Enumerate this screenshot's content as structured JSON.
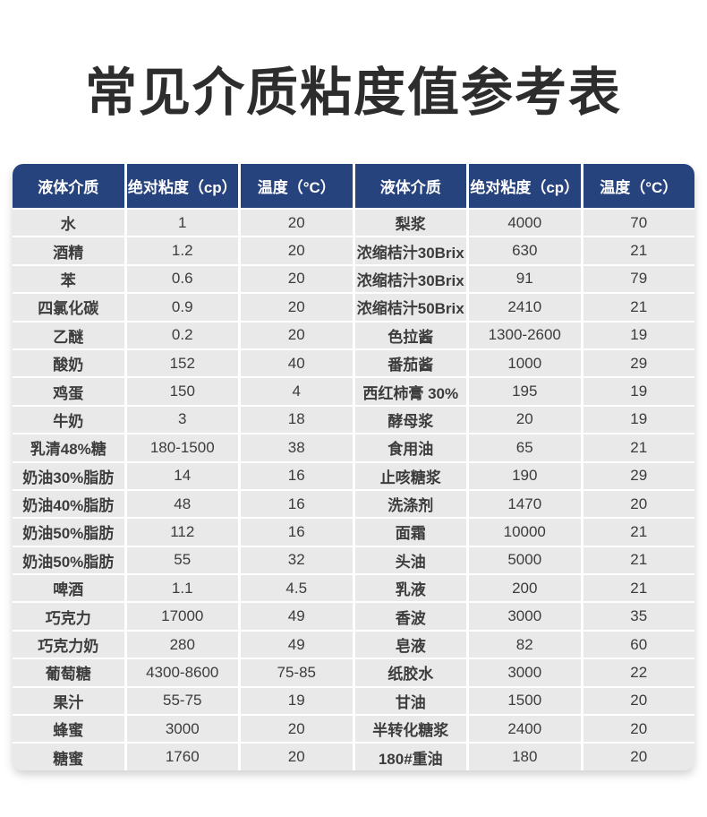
{
  "page": {
    "title": "常见介质粘度值参考表"
  },
  "colors": {
    "title_color": "#2d2d2d",
    "header_bg": "#27437e",
    "header_text": "#ffffff",
    "row_bg": "#e9e9e9",
    "cell_text": "#3c3c3c",
    "separator": "#ffffff"
  },
  "table": {
    "headers": [
      "液体介质",
      "绝对粘度（cp）",
      "温度（°C）",
      "液体介质",
      "绝对粘度（cp）",
      "温度（°C）"
    ],
    "rows": [
      [
        "水",
        "1",
        "20",
        "梨浆",
        "4000",
        "70"
      ],
      [
        "酒精",
        "1.2",
        "20",
        "浓缩桔汁30Brix",
        "630",
        "21"
      ],
      [
        "苯",
        "0.6",
        "20",
        "浓缩桔汁30Brix",
        "91",
        "79"
      ],
      [
        "四氯化碳",
        "0.9",
        "20",
        "浓缩桔汁50Brix",
        "2410",
        "21"
      ],
      [
        "乙醚",
        "0.2",
        "20",
        "色拉酱",
        "1300-2600",
        "19"
      ],
      [
        "酸奶",
        "152",
        "40",
        "番茄酱",
        "1000",
        "29"
      ],
      [
        "鸡蛋",
        "150",
        "4",
        "西红柿膏 30%",
        "195",
        "19"
      ],
      [
        "牛奶",
        "3",
        "18",
        "酵母浆",
        "20",
        "19"
      ],
      [
        "乳清48%糖",
        "180-1500",
        "38",
        "食用油",
        "65",
        "21"
      ],
      [
        "奶油30%脂肪",
        "14",
        "16",
        "止咳糖浆",
        "190",
        "29"
      ],
      [
        "奶油40%脂肪",
        "48",
        "16",
        "洗涤剂",
        "1470",
        "20"
      ],
      [
        "奶油50%脂肪",
        "112",
        "16",
        "面霜",
        "10000",
        "21"
      ],
      [
        "奶油50%脂肪",
        "55",
        "32",
        "头油",
        "5000",
        "21"
      ],
      [
        "啤酒",
        "1.1",
        "4.5",
        "乳液",
        "200",
        "21"
      ],
      [
        "巧克力",
        "17000",
        "49",
        "香波",
        "3000",
        "35"
      ],
      [
        "巧克力奶",
        "280",
        "49",
        "皂液",
        "82",
        "60"
      ],
      [
        "葡萄糖",
        "4300-8600",
        "75-85",
        "纸胶水",
        "3000",
        "22"
      ],
      [
        "果汁",
        "55-75",
        "19",
        "甘油",
        "1500",
        "20"
      ],
      [
        "蜂蜜",
        "3000",
        "20",
        "半转化糖浆",
        "2400",
        "20"
      ],
      [
        "糖蜜",
        "1760",
        "20",
        "180#重油",
        "180",
        "20"
      ]
    ]
  },
  "chart_data": {
    "type": "table",
    "title": "常见介质粘度值参考表",
    "columns": [
      "液体介质",
      "绝对粘度（cp）",
      "温度（°C）"
    ],
    "records": [
      {
        "medium": "水",
        "viscosity_cp": "1",
        "temperature_c": "20"
      },
      {
        "medium": "酒精",
        "viscosity_cp": "1.2",
        "temperature_c": "20"
      },
      {
        "medium": "苯",
        "viscosity_cp": "0.6",
        "temperature_c": "20"
      },
      {
        "medium": "四氯化碳",
        "viscosity_cp": "0.9",
        "temperature_c": "20"
      },
      {
        "medium": "乙醚",
        "viscosity_cp": "0.2",
        "temperature_c": "20"
      },
      {
        "medium": "酸奶",
        "viscosity_cp": "152",
        "temperature_c": "40"
      },
      {
        "medium": "鸡蛋",
        "viscosity_cp": "150",
        "temperature_c": "4"
      },
      {
        "medium": "牛奶",
        "viscosity_cp": "3",
        "temperature_c": "18"
      },
      {
        "medium": "乳清48%糖",
        "viscosity_cp": "180-1500",
        "temperature_c": "38"
      },
      {
        "medium": "奶油30%脂肪",
        "viscosity_cp": "14",
        "temperature_c": "16"
      },
      {
        "medium": "奶油40%脂肪",
        "viscosity_cp": "48",
        "temperature_c": "16"
      },
      {
        "medium": "奶油50%脂肪",
        "viscosity_cp": "112",
        "temperature_c": "16"
      },
      {
        "medium": "奶油50%脂肪",
        "viscosity_cp": "55",
        "temperature_c": "32"
      },
      {
        "medium": "啤酒",
        "viscosity_cp": "1.1",
        "temperature_c": "4.5"
      },
      {
        "medium": "巧克力",
        "viscosity_cp": "17000",
        "temperature_c": "49"
      },
      {
        "medium": "巧克力奶",
        "viscosity_cp": "280",
        "temperature_c": "49"
      },
      {
        "medium": "葡萄糖",
        "viscosity_cp": "4300-8600",
        "temperature_c": "75-85"
      },
      {
        "medium": "果汁",
        "viscosity_cp": "55-75",
        "temperature_c": "19"
      },
      {
        "medium": "蜂蜜",
        "viscosity_cp": "3000",
        "temperature_c": "20"
      },
      {
        "medium": "糖蜜",
        "viscosity_cp": "1760",
        "temperature_c": "20"
      },
      {
        "medium": "梨浆",
        "viscosity_cp": "4000",
        "temperature_c": "70"
      },
      {
        "medium": "浓缩桔汁30Brix",
        "viscosity_cp": "630",
        "temperature_c": "21"
      },
      {
        "medium": "浓缩桔汁30Brix",
        "viscosity_cp": "91",
        "temperature_c": "79"
      },
      {
        "medium": "浓缩桔汁50Brix",
        "viscosity_cp": "2410",
        "temperature_c": "21"
      },
      {
        "medium": "色拉酱",
        "viscosity_cp": "1300-2600",
        "temperature_c": "19"
      },
      {
        "medium": "番茄酱",
        "viscosity_cp": "1000",
        "temperature_c": "29"
      },
      {
        "medium": "西红柿膏 30%",
        "viscosity_cp": "195",
        "temperature_c": "19"
      },
      {
        "medium": "酵母浆",
        "viscosity_cp": "20",
        "temperature_c": "19"
      },
      {
        "medium": "食用油",
        "viscosity_cp": "65",
        "temperature_c": "21"
      },
      {
        "medium": "止咳糖浆",
        "viscosity_cp": "190",
        "temperature_c": "29"
      },
      {
        "medium": "洗涤剂",
        "viscosity_cp": "1470",
        "temperature_c": "20"
      },
      {
        "medium": "面霜",
        "viscosity_cp": "10000",
        "temperature_c": "21"
      },
      {
        "medium": "头油",
        "viscosity_cp": "5000",
        "temperature_c": "21"
      },
      {
        "medium": "乳液",
        "viscosity_cp": "200",
        "temperature_c": "21"
      },
      {
        "medium": "香波",
        "viscosity_cp": "3000",
        "temperature_c": "35"
      },
      {
        "medium": "皂液",
        "viscosity_cp": "82",
        "temperature_c": "60"
      },
      {
        "medium": "纸胶水",
        "viscosity_cp": "3000",
        "temperature_c": "22"
      },
      {
        "medium": "甘油",
        "viscosity_cp": "1500",
        "temperature_c": "20"
      },
      {
        "medium": "半转化糖浆",
        "viscosity_cp": "2400",
        "temperature_c": "20"
      },
      {
        "medium": "180#重油",
        "viscosity_cp": "180",
        "temperature_c": "20"
      }
    ]
  }
}
